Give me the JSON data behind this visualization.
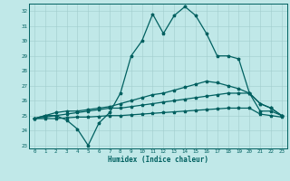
{
  "title": "",
  "xlabel": "Humidex (Indice chaleur)",
  "ylabel": "",
  "bg_color": "#c0e8e8",
  "line_color": "#006060",
  "grid_color": "#a0cccc",
  "xlim": [
    -0.5,
    23.5
  ],
  "ylim": [
    22.8,
    32.5
  ],
  "yticks": [
    23,
    24,
    25,
    26,
    27,
    28,
    29,
    30,
    31,
    32
  ],
  "xticks": [
    0,
    1,
    2,
    3,
    4,
    5,
    6,
    7,
    8,
    9,
    10,
    11,
    12,
    13,
    14,
    15,
    16,
    17,
    18,
    19,
    20,
    21,
    22,
    23
  ],
  "line1_x": [
    0,
    1,
    2,
    3,
    4,
    5,
    6,
    7,
    8,
    9,
    10,
    11,
    12,
    13,
    14,
    15,
    16,
    17,
    18,
    19,
    20,
    21,
    22,
    23
  ],
  "line1_y": [
    24.8,
    25.0,
    25.0,
    24.7,
    24.1,
    23.0,
    24.5,
    25.2,
    26.5,
    29.0,
    30.0,
    31.8,
    30.5,
    31.7,
    32.3,
    31.7,
    30.5,
    29.0,
    29.0,
    28.8,
    26.5,
    25.3,
    25.3,
    25.0
  ],
  "line2_x": [
    0,
    1,
    2,
    3,
    4,
    5,
    6,
    7,
    8,
    9,
    10,
    11,
    12,
    13,
    14,
    15,
    16,
    17,
    18,
    19,
    20,
    21,
    22,
    23
  ],
  "line2_y": [
    24.8,
    25.0,
    25.2,
    25.3,
    25.3,
    25.4,
    25.5,
    25.6,
    25.8,
    26.0,
    26.2,
    26.4,
    26.5,
    26.7,
    26.9,
    27.1,
    27.3,
    27.2,
    27.0,
    26.8,
    26.5,
    25.8,
    25.5,
    25.0
  ],
  "line3_x": [
    0,
    1,
    2,
    3,
    4,
    5,
    6,
    7,
    8,
    9,
    10,
    11,
    12,
    13,
    14,
    15,
    16,
    17,
    18,
    19,
    20,
    21,
    22,
    23
  ],
  "line3_y": [
    24.8,
    24.9,
    25.0,
    25.1,
    25.2,
    25.3,
    25.4,
    25.5,
    25.5,
    25.6,
    25.7,
    25.8,
    25.9,
    26.0,
    26.1,
    26.2,
    26.3,
    26.4,
    26.5,
    26.5,
    26.5,
    25.8,
    25.5,
    25.0
  ],
  "line4_x": [
    0,
    1,
    2,
    3,
    4,
    5,
    6,
    7,
    8,
    9,
    10,
    11,
    12,
    13,
    14,
    15,
    16,
    17,
    18,
    19,
    20,
    21,
    22,
    23
  ],
  "line4_y": [
    24.8,
    24.8,
    24.8,
    24.85,
    24.9,
    24.9,
    24.95,
    25.0,
    25.0,
    25.05,
    25.1,
    25.15,
    25.2,
    25.25,
    25.3,
    25.35,
    25.4,
    25.45,
    25.5,
    25.5,
    25.5,
    25.1,
    25.0,
    24.9
  ]
}
